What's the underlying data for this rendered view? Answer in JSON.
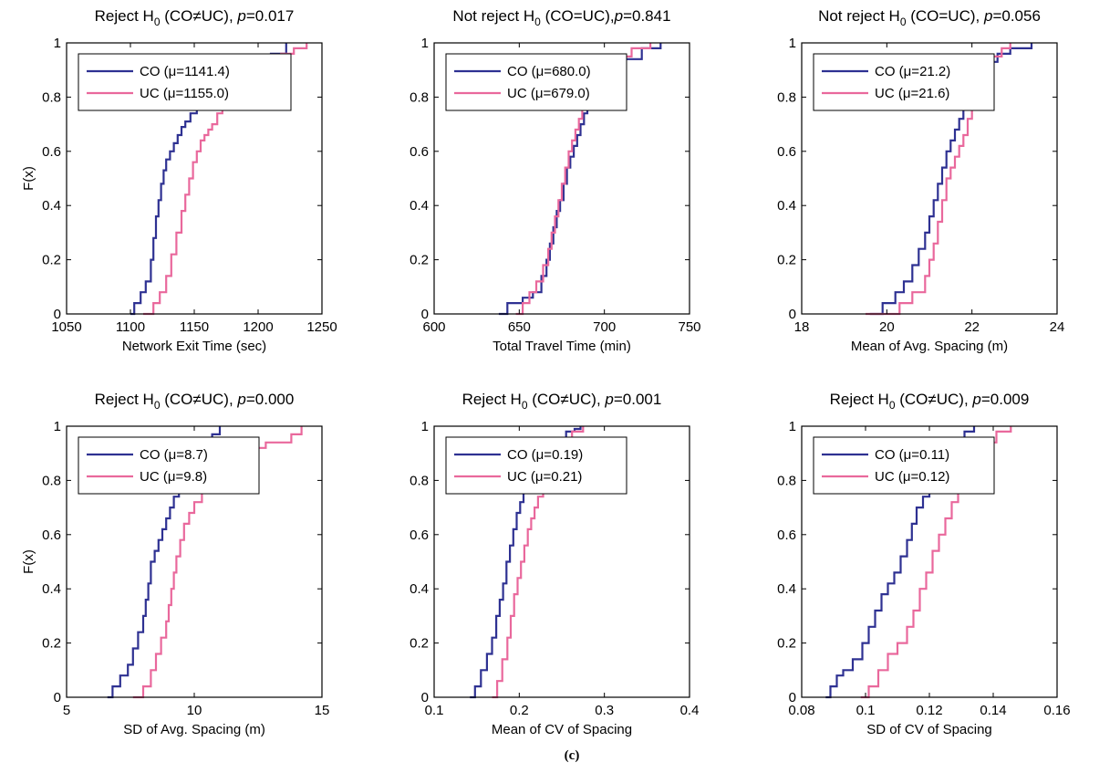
{
  "caption": "(c)",
  "colors": {
    "CO": "#2e3192",
    "UC": "#e9689c"
  },
  "chart_data": [
    {
      "type": "line",
      "step": true,
      "title_lead": "Reject H",
      "title_sub": "0",
      "title_tail": " (CO≠UC), ",
      "title_p": "p",
      "title_pval": "=0.017",
      "xlabel": "Network Exit Time (sec)",
      "ylabel": "F(x)",
      "xlim": [
        1050,
        1250
      ],
      "ylim": [
        0,
        1
      ],
      "xticks": [
        "1050",
        "1100",
        "1150",
        "1200",
        "1250"
      ],
      "yticks": [
        "0",
        "0.2",
        "0.4",
        "0.6",
        "0.8",
        "1"
      ],
      "legend": "top-left",
      "series": [
        {
          "name": "CO (μ=1141.4)",
          "key": "CO",
          "x": [
            1100,
            1103,
            1108,
            1112,
            1116,
            1118,
            1120,
            1122,
            1124,
            1126,
            1128,
            1131,
            1134,
            1137,
            1140,
            1143,
            1147,
            1152,
            1157,
            1163,
            1170,
            1180,
            1195,
            1210,
            1222
          ],
          "y": [
            0.0,
            0.04,
            0.08,
            0.12,
            0.2,
            0.28,
            0.36,
            0.42,
            0.48,
            0.53,
            0.57,
            0.6,
            0.63,
            0.66,
            0.69,
            0.71,
            0.74,
            0.76,
            0.78,
            0.8,
            0.83,
            0.87,
            0.92,
            0.96,
            1.0
          ]
        },
        {
          "name": "UC (μ=1155.0)",
          "key": "UC",
          "x": [
            1110,
            1118,
            1123,
            1128,
            1132,
            1136,
            1140,
            1143,
            1146,
            1149,
            1152,
            1155,
            1158,
            1161,
            1164,
            1168,
            1172,
            1178,
            1186,
            1196,
            1206,
            1218,
            1228,
            1238
          ],
          "y": [
            0.0,
            0.04,
            0.08,
            0.14,
            0.22,
            0.3,
            0.38,
            0.44,
            0.5,
            0.56,
            0.6,
            0.64,
            0.66,
            0.68,
            0.7,
            0.74,
            0.78,
            0.82,
            0.86,
            0.9,
            0.93,
            0.96,
            0.98,
            1.0
          ]
        }
      ]
    },
    {
      "type": "line",
      "step": true,
      "title_lead": "Not reject H",
      "title_sub": "0",
      "title_tail": " (CO=UC),",
      "title_p": "p",
      "title_pval": "=0.841",
      "xlabel": "Total Travel Time (min)",
      "ylabel": "",
      "xlim": [
        600,
        750
      ],
      "ylim": [
        0,
        1
      ],
      "xticks": [
        "600",
        "650",
        "700",
        "750"
      ],
      "yticks": [
        "0",
        "0.2",
        "0.4",
        "0.6",
        "0.8",
        "1"
      ],
      "legend": "top-left",
      "series": [
        {
          "name": "CO (μ=680.0)",
          "key": "CO",
          "x": [
            638,
            643,
            652,
            658,
            663,
            666,
            668,
            670,
            672,
            674,
            676,
            678,
            680,
            682,
            684,
            686,
            688,
            690,
            694,
            700,
            710,
            722,
            733
          ],
          "y": [
            0.0,
            0.04,
            0.06,
            0.08,
            0.14,
            0.2,
            0.26,
            0.32,
            0.38,
            0.42,
            0.48,
            0.54,
            0.58,
            0.62,
            0.66,
            0.7,
            0.74,
            0.8,
            0.86,
            0.9,
            0.94,
            0.98,
            1.0
          ]
        },
        {
          "name": "UC (μ=679.0)",
          "key": "UC",
          "x": [
            648,
            652,
            656,
            660,
            664,
            667,
            669,
            671,
            673,
            675,
            677,
            679,
            681,
            683,
            685,
            687,
            690,
            694,
            698,
            705,
            716,
            727
          ],
          "y": [
            0.0,
            0.04,
            0.08,
            0.12,
            0.18,
            0.24,
            0.3,
            0.36,
            0.42,
            0.48,
            0.54,
            0.6,
            0.64,
            0.68,
            0.72,
            0.76,
            0.8,
            0.86,
            0.9,
            0.95,
            0.98,
            1.0
          ]
        }
      ]
    },
    {
      "type": "line",
      "step": true,
      "title_lead": "Not reject H",
      "title_sub": "0",
      "title_tail": " (CO=UC), ",
      "title_p": "p",
      "title_pval": "=0.056",
      "xlabel": "Mean of Avg. Spacing (m)",
      "ylabel": "",
      "xlim": [
        18,
        24
      ],
      "ylim": [
        0,
        1
      ],
      "xticks": [
        "18",
        "20",
        "22",
        "24"
      ],
      "yticks": [
        "0",
        "0.2",
        "0.4",
        "0.6",
        "0.8",
        "1"
      ],
      "legend": "top-left",
      "series": [
        {
          "name": "CO (μ=21.2)",
          "key": "CO",
          "x": [
            19.6,
            19.9,
            20.2,
            20.4,
            20.6,
            20.75,
            20.9,
            21.0,
            21.1,
            21.2,
            21.3,
            21.4,
            21.5,
            21.6,
            21.7,
            21.8,
            21.9,
            22.0,
            22.1,
            22.25,
            22.4,
            22.6,
            22.9,
            23.4
          ],
          "y": [
            0.0,
            0.04,
            0.08,
            0.12,
            0.18,
            0.24,
            0.3,
            0.36,
            0.42,
            0.48,
            0.54,
            0.6,
            0.64,
            0.68,
            0.72,
            0.76,
            0.8,
            0.84,
            0.88,
            0.9,
            0.93,
            0.96,
            0.98,
            1.0
          ]
        },
        {
          "name": "UC (μ=21.6)",
          "key": "UC",
          "x": [
            19.5,
            20.3,
            20.6,
            20.9,
            21.0,
            21.1,
            21.2,
            21.3,
            21.4,
            21.5,
            21.6,
            21.7,
            21.8,
            21.9,
            22.0,
            22.1,
            22.2,
            22.3,
            22.5,
            22.7,
            22.9
          ],
          "y": [
            0.0,
            0.04,
            0.08,
            0.14,
            0.2,
            0.26,
            0.34,
            0.42,
            0.5,
            0.54,
            0.58,
            0.62,
            0.66,
            0.72,
            0.78,
            0.84,
            0.88,
            0.92,
            0.95,
            0.98,
            1.0
          ]
        }
      ]
    },
    {
      "type": "line",
      "step": true,
      "title_lead": "Reject H",
      "title_sub": "0",
      "title_tail": " (CO≠UC), ",
      "title_p": "p",
      "title_pval": "=0.000",
      "xlabel": "SD of Avg. Spacing (m)",
      "ylabel": "F(x)",
      "xlim": [
        5,
        15
      ],
      "ylim": [
        0,
        1
      ],
      "xticks": [
        "5",
        "10",
        "15"
      ],
      "yticks": [
        "0",
        "0.2",
        "0.4",
        "0.6",
        "0.8",
        "1"
      ],
      "legend": "top-left",
      "series": [
        {
          "name": "CO (μ=8.7)",
          "key": "CO",
          "x": [
            6.6,
            6.8,
            7.1,
            7.4,
            7.6,
            7.8,
            8.0,
            8.1,
            8.2,
            8.3,
            8.45,
            8.6,
            8.75,
            8.9,
            9.05,
            9.2,
            9.4,
            9.6,
            9.8,
            10.0,
            10.3,
            10.7,
            11.0
          ],
          "y": [
            0.0,
            0.04,
            0.08,
            0.12,
            0.18,
            0.24,
            0.3,
            0.36,
            0.42,
            0.5,
            0.54,
            0.58,
            0.62,
            0.66,
            0.7,
            0.74,
            0.78,
            0.82,
            0.86,
            0.9,
            0.94,
            0.97,
            1.0
          ]
        },
        {
          "name": "UC (μ=9.8)",
          "key": "UC",
          "x": [
            7.6,
            8.0,
            8.3,
            8.5,
            8.7,
            8.9,
            9.0,
            9.1,
            9.2,
            9.3,
            9.45,
            9.6,
            9.8,
            10.0,
            10.3,
            10.6,
            11.0,
            11.5,
            12.0,
            12.8,
            13.8,
            14.2
          ],
          "y": [
            0.0,
            0.04,
            0.1,
            0.16,
            0.22,
            0.28,
            0.34,
            0.4,
            0.46,
            0.52,
            0.58,
            0.64,
            0.68,
            0.72,
            0.76,
            0.8,
            0.84,
            0.88,
            0.92,
            0.94,
            0.97,
            1.0
          ]
        }
      ]
    },
    {
      "type": "line",
      "step": true,
      "title_lead": "Reject H",
      "title_sub": "0",
      "title_tail": " (CO≠UC), ",
      "title_p": "p",
      "title_pval": "=0.001",
      "xlabel": "Mean of CV of Spacing",
      "ylabel": "",
      "xlim": [
        0.1,
        0.4
      ],
      "ylim": [
        0,
        1
      ],
      "xticks": [
        "0.1",
        "0.2",
        "0.3",
        "0.4"
      ],
      "yticks": [
        "0",
        "0.2",
        "0.4",
        "0.6",
        "0.8",
        "1"
      ],
      "legend": "top-left",
      "series": [
        {
          "name": "CO (μ=0.19)",
          "key": "CO",
          "x": [
            0.142,
            0.148,
            0.155,
            0.162,
            0.168,
            0.173,
            0.177,
            0.181,
            0.185,
            0.189,
            0.193,
            0.197,
            0.201,
            0.205,
            0.21,
            0.216,
            0.223,
            0.232,
            0.243,
            0.255,
            0.265,
            0.272
          ],
          "y": [
            0.0,
            0.04,
            0.1,
            0.16,
            0.22,
            0.3,
            0.36,
            0.42,
            0.5,
            0.56,
            0.62,
            0.68,
            0.72,
            0.76,
            0.8,
            0.84,
            0.88,
            0.92,
            0.95,
            0.98,
            0.99,
            1.0
          ]
        },
        {
          "name": "UC (μ=0.21)",
          "key": "UC",
          "x": [
            0.168,
            0.174,
            0.18,
            0.186,
            0.19,
            0.194,
            0.198,
            0.202,
            0.206,
            0.21,
            0.214,
            0.218,
            0.222,
            0.228,
            0.235,
            0.243,
            0.252,
            0.262,
            0.275
          ],
          "y": [
            0.0,
            0.06,
            0.14,
            0.22,
            0.3,
            0.38,
            0.44,
            0.5,
            0.56,
            0.62,
            0.66,
            0.7,
            0.74,
            0.8,
            0.86,
            0.9,
            0.94,
            0.98,
            1.0
          ]
        }
      ]
    },
    {
      "type": "line",
      "step": true,
      "title_lead": "Reject H",
      "title_sub": "0",
      "title_tail": " (CO≠UC), ",
      "title_p": "p",
      "title_pval": "=0.009",
      "xlabel": "SD of CV of Spacing",
      "ylabel": "",
      "xlim": [
        0.08,
        0.16
      ],
      "ylim": [
        0,
        1
      ],
      "xticks": [
        "0.08",
        "0.1",
        "0.12",
        "0.14",
        "0.16"
      ],
      "yticks": [
        "0",
        "0.2",
        "0.4",
        "0.6",
        "0.8",
        "1"
      ],
      "legend": "top-left",
      "series": [
        {
          "name": "CO (μ=0.11)",
          "key": "CO",
          "x": [
            0.0875,
            0.089,
            0.091,
            0.093,
            0.096,
            0.099,
            0.101,
            0.103,
            0.105,
            0.107,
            0.109,
            0.111,
            0.113,
            0.1145,
            0.116,
            0.118,
            0.12,
            0.122,
            0.125,
            0.128,
            0.131,
            0.134
          ],
          "y": [
            0.0,
            0.04,
            0.08,
            0.1,
            0.14,
            0.2,
            0.26,
            0.32,
            0.38,
            0.42,
            0.46,
            0.52,
            0.58,
            0.64,
            0.7,
            0.74,
            0.78,
            0.82,
            0.88,
            0.93,
            0.98,
            1.0
          ]
        },
        {
          "name": "UC (μ=0.12)",
          "key": "UC",
          "x": [
            0.0985,
            0.101,
            0.104,
            0.107,
            0.11,
            0.113,
            0.115,
            0.117,
            0.119,
            0.121,
            0.123,
            0.125,
            0.127,
            0.129,
            0.131,
            0.134,
            0.137,
            0.141,
            0.1455
          ],
          "y": [
            0.0,
            0.04,
            0.1,
            0.16,
            0.2,
            0.26,
            0.32,
            0.4,
            0.46,
            0.54,
            0.6,
            0.66,
            0.72,
            0.78,
            0.84,
            0.9,
            0.94,
            0.98,
            1.0
          ]
        }
      ]
    }
  ]
}
